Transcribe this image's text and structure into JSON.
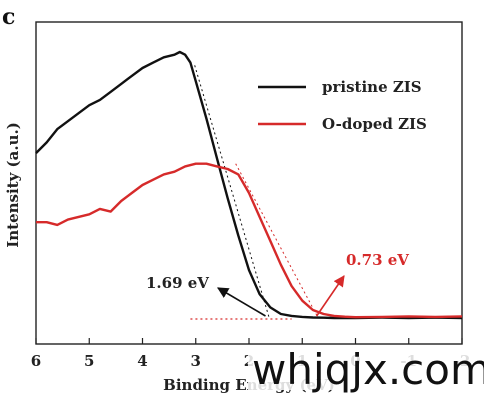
{
  "chart_data": {
    "type": "line",
    "panel_label": "c",
    "title": "",
    "xlabel": "Binding Energy (eV)",
    "ylabel": "Intensity (a.u.)",
    "xlim": [
      6,
      -2
    ],
    "x_reversed": true,
    "ylim": [
      0,
      1
    ],
    "x_ticks": [
      6,
      5,
      4,
      3,
      2,
      1,
      0,
      -1,
      -2
    ],
    "x_tick_labels": [
      "6",
      "5",
      "4",
      "3",
      "2",
      "1",
      "0",
      "-1",
      "-2"
    ],
    "y_ticks_labeled": false,
    "grid": false,
    "legend_position": "top-right",
    "series": [
      {
        "name": "pristine ZIS",
        "color": "#111111",
        "x": [
          6.0,
          5.8,
          5.6,
          5.4,
          5.2,
          5.0,
          4.8,
          4.6,
          4.4,
          4.2,
          4.0,
          3.8,
          3.6,
          3.4,
          3.3,
          3.2,
          3.1,
          3.0,
          2.8,
          2.6,
          2.4,
          2.2,
          2.0,
          1.8,
          1.6,
          1.4,
          1.2,
          1.0,
          0.8,
          0.6,
          0.4,
          0.0,
          -0.5,
          -1.0,
          -1.5,
          -2.0
        ],
        "y": [
          0.62,
          0.66,
          0.71,
          0.74,
          0.77,
          0.8,
          0.82,
          0.85,
          0.88,
          0.91,
          0.94,
          0.96,
          0.98,
          0.99,
          1.0,
          0.99,
          0.96,
          0.89,
          0.75,
          0.6,
          0.45,
          0.31,
          0.18,
          0.09,
          0.04,
          0.015,
          0.008,
          0.004,
          0.002,
          0.001,
          0.0,
          0.0,
          0.002,
          0.0,
          0.002,
          0.0
        ]
      },
      {
        "name": "O-doped ZIS",
        "color": "#d62a2a",
        "x": [
          6.0,
          5.8,
          5.6,
          5.4,
          5.2,
          5.0,
          4.8,
          4.6,
          4.4,
          4.2,
          4.0,
          3.8,
          3.6,
          3.4,
          3.2,
          3.0,
          2.8,
          2.6,
          2.4,
          2.2,
          2.0,
          1.8,
          1.6,
          1.4,
          1.2,
          1.0,
          0.8,
          0.6,
          0.4,
          0.2,
          0.0,
          -0.5,
          -1.0,
          -1.5,
          -2.0
        ],
        "y": [
          0.36,
          0.36,
          0.35,
          0.37,
          0.38,
          0.39,
          0.41,
          0.4,
          0.44,
          0.47,
          0.5,
          0.52,
          0.54,
          0.55,
          0.57,
          0.58,
          0.58,
          0.57,
          0.56,
          0.54,
          0.47,
          0.38,
          0.29,
          0.2,
          0.12,
          0.065,
          0.03,
          0.015,
          0.008,
          0.005,
          0.003,
          0.004,
          0.006,
          0.004,
          0.006
        ]
      }
    ],
    "tangent_lines": [
      {
        "series": "pristine ZIS",
        "color": "#111111",
        "x": [
          3.02,
          1.62
        ],
        "y": [
          0.95,
          0.0
        ]
      },
      {
        "series": "O-doped ZIS",
        "color": "#d62a2a",
        "x": [
          2.25,
          0.7
        ],
        "y": [
          0.58,
          0.0
        ]
      }
    ],
    "baseline": {
      "color": "#d62a2a",
      "x": [
        3.1,
        1.2
      ],
      "y": [
        0.0,
        0.0
      ]
    },
    "annotations": [
      {
        "text": "1.69 eV",
        "color": "#111111",
        "arrow_to": [
          1.69,
          0.0
        ]
      },
      {
        "text": "0.73 eV",
        "color": "#d62a2a",
        "arrow_to": [
          0.73,
          0.0
        ]
      }
    ]
  },
  "watermark": "whjqjx.com"
}
